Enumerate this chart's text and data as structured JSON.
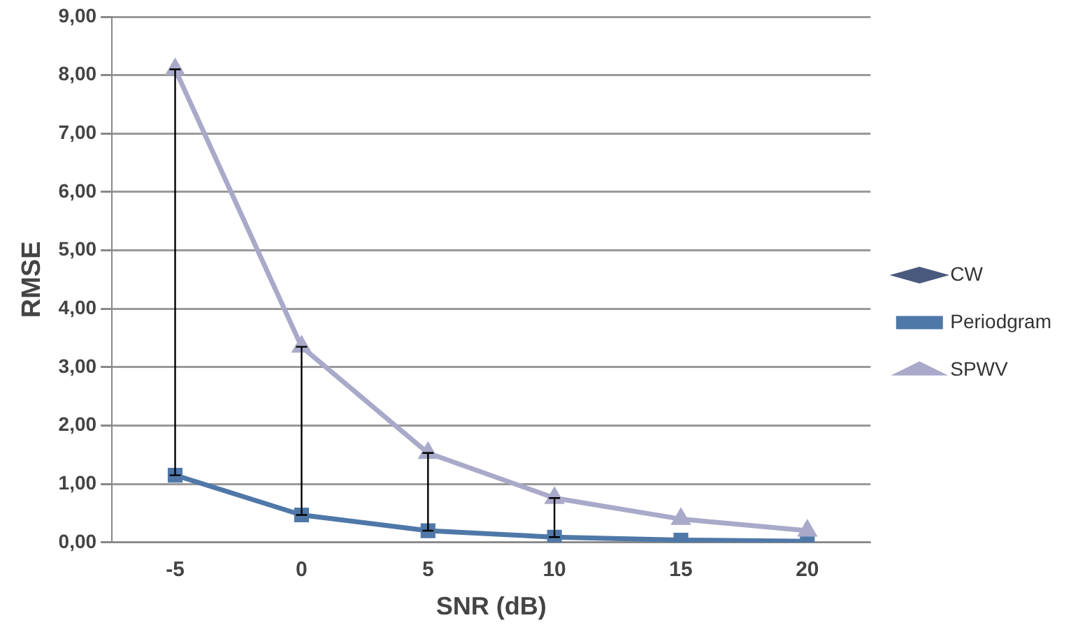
{
  "chart_data": {
    "type": "line",
    "xlabel": "SNR (dB)",
    "ylabel": "RMSE",
    "categories": [
      "-5",
      "0",
      "5",
      "10",
      "15",
      "20"
    ],
    "series": [
      {
        "name": "CW",
        "color": "#4a5a7e",
        "marker": "diamond",
        "values": [
          null,
          null,
          null,
          null,
          null,
          null
        ]
      },
      {
        "name": "Periodgram",
        "color": "#4f78a8",
        "marker": "square",
        "values": [
          1.15,
          0.47,
          0.2,
          0.09,
          0.04,
          0.02
        ],
        "errors": [
          [
            1.15,
            8.1
          ],
          [
            0.47,
            3.35
          ],
          [
            0.2,
            1.53
          ],
          [
            0.09,
            0.76
          ],
          null,
          null
        ]
      },
      {
        "name": "SPWV",
        "color": "#a9a9c9",
        "marker": "triangle",
        "values": [
          8.1,
          3.35,
          1.53,
          0.76,
          0.4,
          0.2
        ]
      }
    ],
    "ylim": [
      0,
      9
    ],
    "yticks": [
      {
        "value": 0,
        "label": "0,00"
      },
      {
        "value": 1,
        "label": "1,00"
      },
      {
        "value": 2,
        "label": "2,00"
      },
      {
        "value": 3,
        "label": "3,00"
      },
      {
        "value": 4,
        "label": "4,00"
      },
      {
        "value": 5,
        "label": "5,00"
      },
      {
        "value": 6,
        "label": "6,00"
      },
      {
        "value": 7,
        "label": "7,00"
      },
      {
        "value": 8,
        "label": "8,00"
      },
      {
        "value": 9,
        "label": "9,00"
      }
    ],
    "grid": "y",
    "legend": "right",
    "line_style": "solid"
  }
}
